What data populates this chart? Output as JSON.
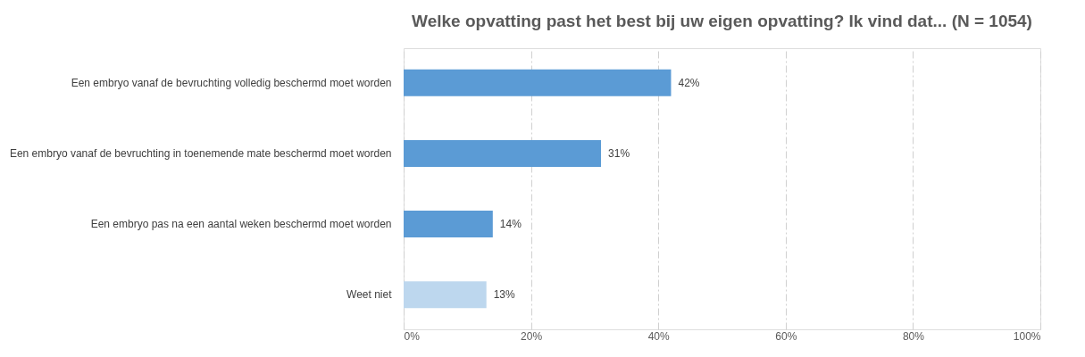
{
  "chart_data": {
    "type": "bar",
    "orientation": "horizontal",
    "title": "Welke opvatting past het best bij uw eigen opvatting?  Ik vind dat... (N = 1054)",
    "categories": [
      "Een embryo vanaf de bevruchting volledig beschermd moet worden",
      "Een embryo vanaf de bevruchting in toenemende mate beschermd moet worden",
      "Een embryo pas na een aantal weken beschermd moet worden",
      "Weet niet"
    ],
    "values": [
      42,
      31,
      14,
      13
    ],
    "colors": [
      "#5b9bd5",
      "#5b9bd5",
      "#5b9bd5",
      "#bdd7ee"
    ],
    "value_labels": [
      "42%",
      "31%",
      "14%",
      "13%"
    ],
    "xlim": [
      0,
      100
    ],
    "xticks": [
      {
        "value": 0,
        "label": "0%"
      },
      {
        "value": 20,
        "label": "20%"
      },
      {
        "value": 40,
        "label": "40%"
      },
      {
        "value": 60,
        "label": "60%"
      },
      {
        "value": 80,
        "label": "80%"
      },
      {
        "value": 100,
        "label": "100%"
      }
    ],
    "grid": "x",
    "legend": false
  }
}
